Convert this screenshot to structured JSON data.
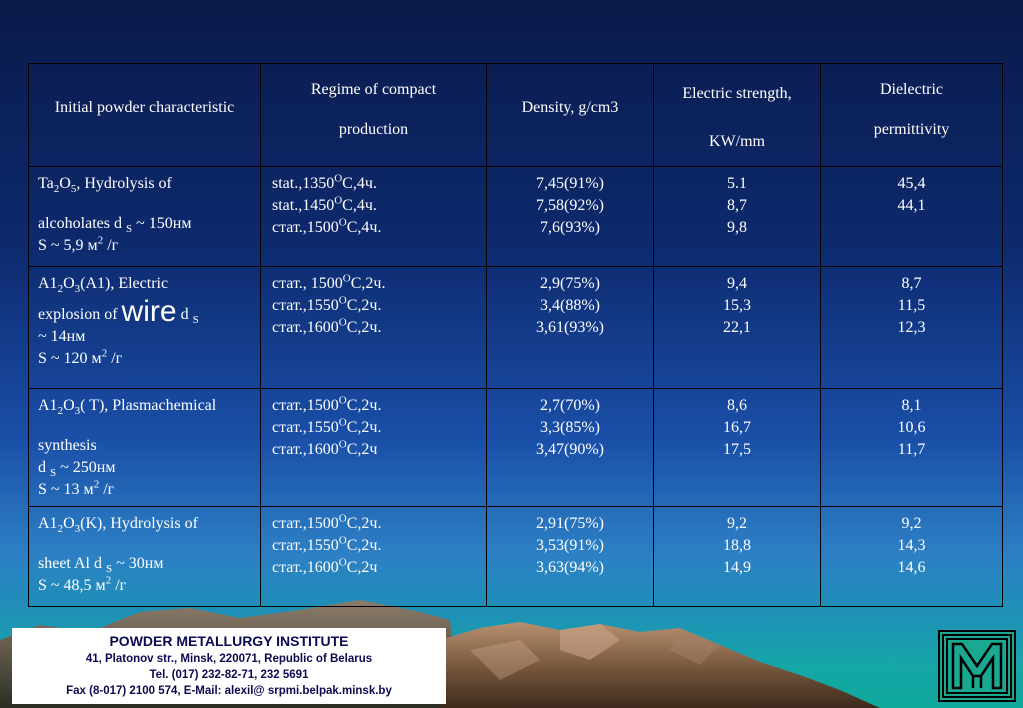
{
  "table": {
    "headers": {
      "initial": "Initial powder characteristic",
      "regime_l1": "Regime of compact",
      "regime_l2": "production",
      "density": "Density, g/cm3",
      "strength_l1": "Electric strength,",
      "strength_l2": "KW/mm",
      "permittivity_l1": "Dielectric",
      "permittivity_l2": "permittivity"
    },
    "rows": [
      {
        "init": {
          "a1": "Ta",
          "a2": "2",
          "a3": "O",
          "a4": "5",
          "a5": ", Hydrolysis of",
          "b1": "alcoholates  d ",
          "b2": "S",
          "b3": " ~ 150нм",
          "c1": "S ~ 5,9 м",
          "c2": "2",
          "c3": " /г"
        },
        "regime": [
          {
            "pre": "stat.,1350",
            "sup": "O",
            "post": "C,4ч."
          },
          {
            "pre": "stat.,1450",
            "sup": "O",
            "post": "C,4ч."
          },
          {
            "pre": "стат.,1500",
            "sup": "O",
            "post": "C,4ч."
          }
        ],
        "density": [
          "7,45(91%)",
          "7,58(92%)",
          "7,6(93%)"
        ],
        "strength": [
          "5.1",
          "8,7",
          "9,8"
        ],
        "permittivity": [
          "45,4",
          "44,1"
        ]
      },
      {
        "init": {
          "a1": "A1",
          "a2": "2",
          "a3": "O",
          "a4": "3",
          "a5": "(A1), Electric",
          "b1": "explosion of ",
          "b_big": "wire",
          "b2": " d ",
          "b3": "S",
          "c1": "~ 14нм",
          "d1": "S ~ 120 м",
          "d2": "2",
          "d3": " /г"
        },
        "regime": [
          {
            "pre": "стат., 1500",
            "sup": "O",
            "post": "C,2ч."
          },
          {
            "pre": "стат.,1550",
            "sup": "O",
            "post": "C,2ч."
          },
          {
            "pre": "стат.,1600",
            "sup": "O",
            "post": "C,2ч."
          }
        ],
        "density": [
          "2,9(75%)",
          "3,4(88%)",
          "3,61(93%)"
        ],
        "strength": [
          "9,4",
          "15,3",
          "22,1"
        ],
        "permittivity": [
          "8,7",
          "11,5",
          "12,3"
        ]
      },
      {
        "init": {
          "a1": "A1",
          "a2": "2",
          "a3": "O",
          "a4": "3",
          "a5": "( T), Plasmachemical",
          "b1": "synthesis",
          "c1": "d ",
          "c2": "S",
          "c3": " ~ 250нм",
          "d1": "S ~ 13 м",
          "d2": "2",
          "d3": " /г"
        },
        "regime": [
          {
            "pre": "стат.,1500",
            "sup": "O",
            "post": "C,2ч."
          },
          {
            "pre": "стат.,1550",
            "sup": "O",
            "post": "C,2ч."
          },
          {
            "pre": "стат.,1600",
            "sup": "O",
            "post": "C,2ч"
          }
        ],
        "density": [
          "2,7(70%)",
          "3,3(85%)",
          "3,47(90%)"
        ],
        "strength": [
          "8,6",
          "16,7",
          "17,5"
        ],
        "permittivity": [
          "8,1",
          "10,6",
          "11,7"
        ]
      },
      {
        "init": {
          "a1": "A1",
          "a2": "2",
          "a3": "O",
          "a4": "3",
          "a5": "(K), Hydrolysis of",
          "b1": "sheet Al   d ",
          "b2": "S",
          "b3": " ~ 30нм",
          "c1": "S ~ 48,5 м",
          "c2": "2",
          "c3": " /г"
        },
        "regime": [
          {
            "pre": "стат.,1500",
            "sup": "O",
            "post": "C,2ч."
          },
          {
            "pre": "стат.,1550",
            "sup": "O",
            "post": "C,2ч."
          },
          {
            "pre": "стат.,1600",
            "sup": "O",
            "post": "C,2ч"
          }
        ],
        "density": [
          "2,91(75%)",
          "3,53(91%)",
          "3,63(94%)"
        ],
        "strength": [
          "9,2",
          "18,8",
          "14,9"
        ],
        "permittivity": [
          "9,2",
          "14,3",
          "14,6"
        ]
      }
    ]
  },
  "footer": {
    "org": "POWDER METALLURGY  INSTITUTE",
    "address": "41, Platonov str., Minsk, 220071, Republic of Belarus",
    "tel": "Tel. (017) 232-82-71, 232 5691",
    "fax": "Fax (8-017) 2100 574, E-Mail: alexil@ srpmi.belpak.minsk.by"
  },
  "colors": {
    "background_top": "#0a1a4a",
    "background_bottom": "#0fa89c",
    "table_border": "#000000",
    "text": "#ffffff",
    "footer_text": "#0a0a50",
    "logo_green": "#1aa890"
  },
  "icons": {
    "logo": "institute-monogram-logo"
  }
}
